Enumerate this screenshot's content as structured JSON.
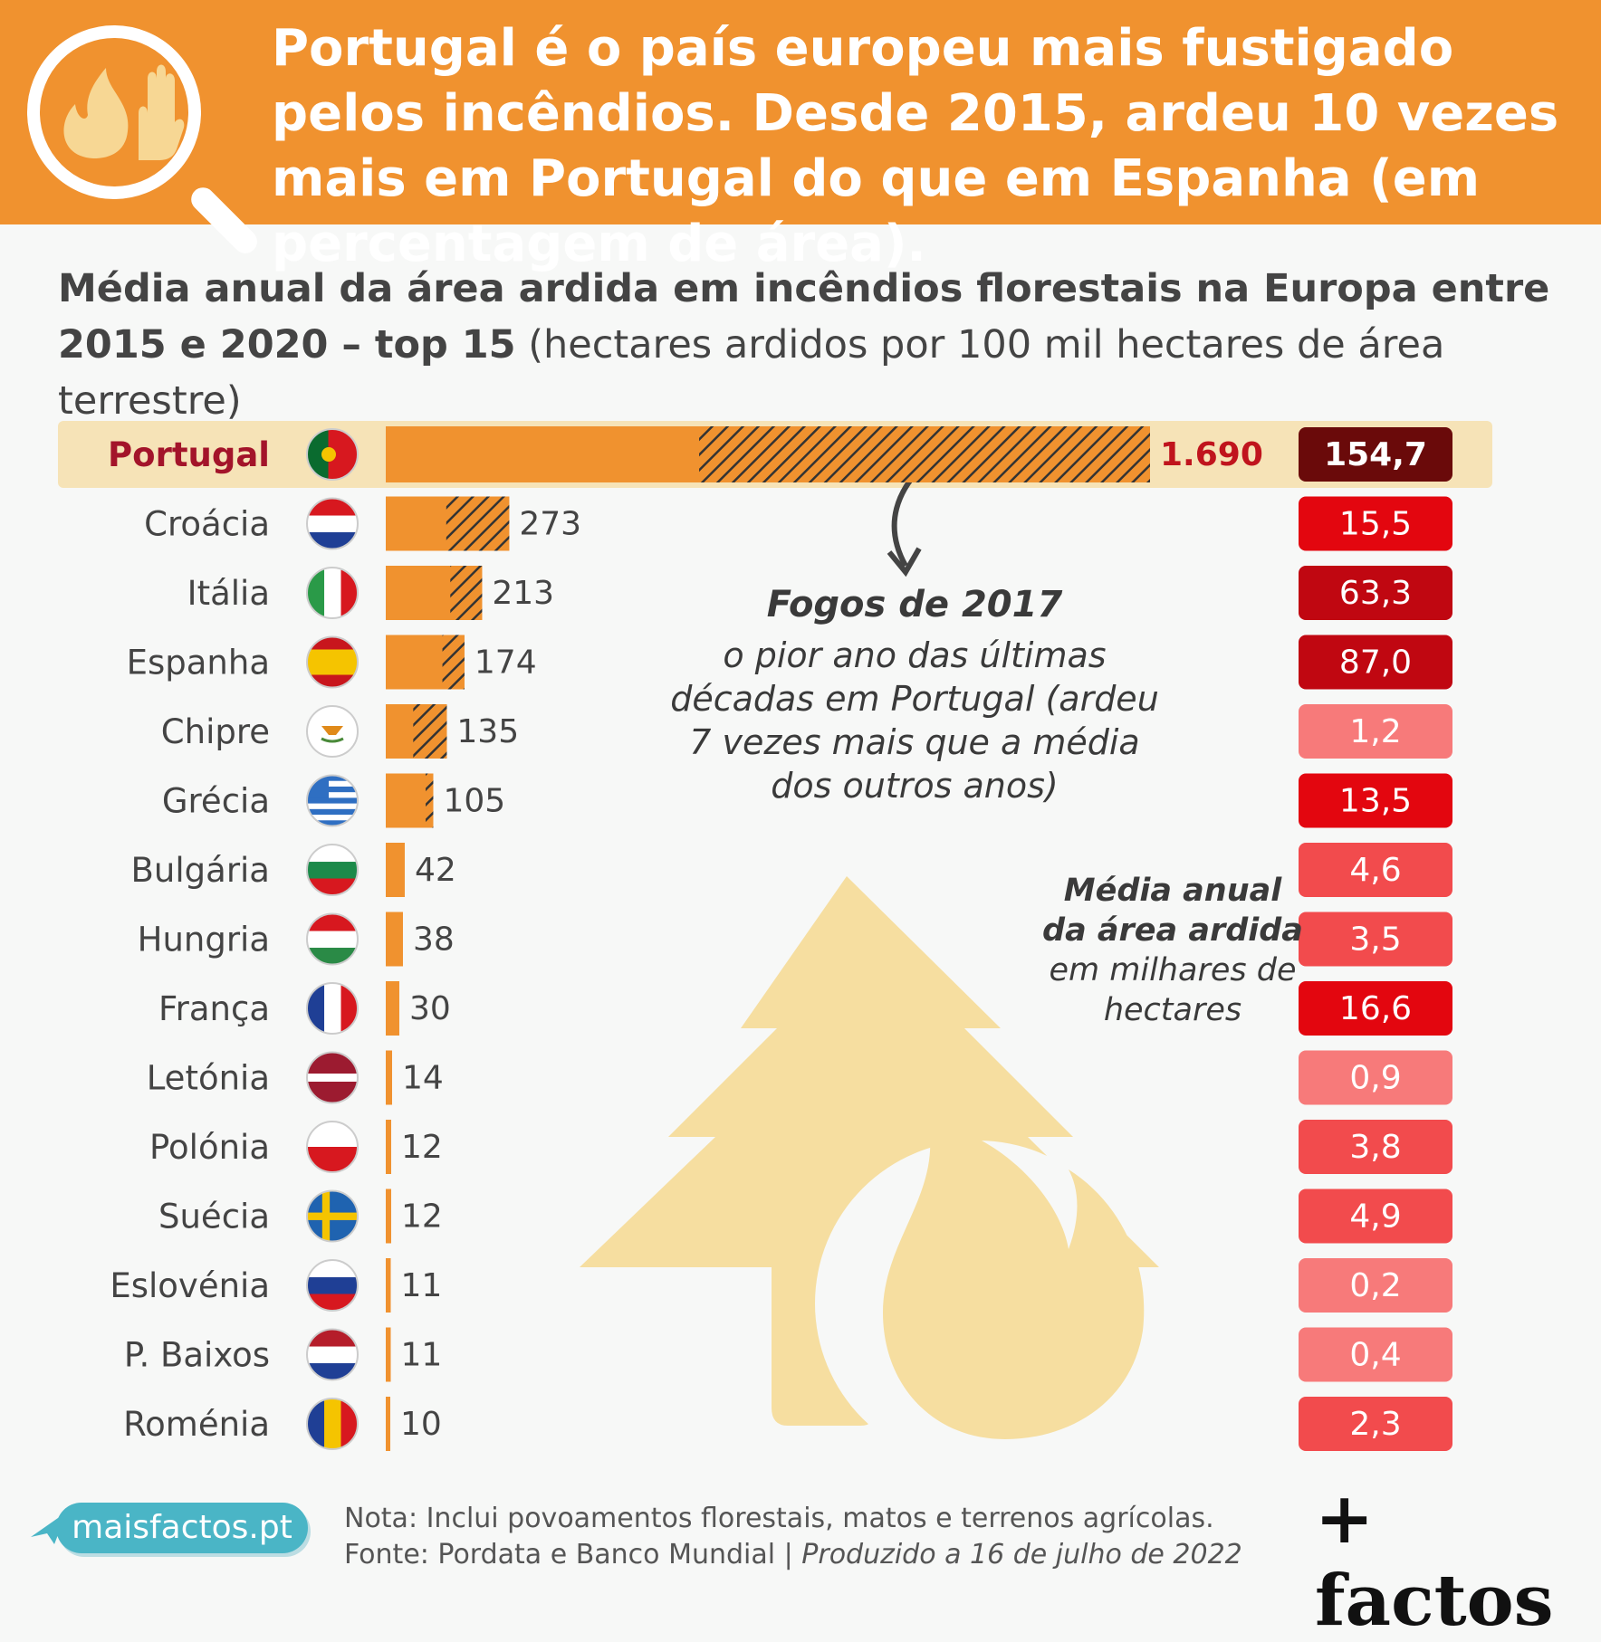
{
  "header": {
    "headline": "Portugal é o país europeu mais fustigado pelos incêndios. Desde 2015, ardeu 10 vezes mais em Portugal do que em Espanha (em percentagem de área)."
  },
  "subtitle": {
    "bold": "Média anual da área ardida em incêndios florestais na Europa entre 2015 e 2020 – top 15",
    "normal": " (hectares ardidos por 100 mil hectares de área terrestre)"
  },
  "annotation": {
    "title": "Fogos de 2017",
    "body": "o pior ano das últimas décadas em Portugal (ardeu 7 vezes mais que a média dos outros anos)"
  },
  "legend_note": {
    "bold": "Média anual da área ardida",
    "normal": "em milhares de hectares"
  },
  "colors": {
    "header": "#f0922f",
    "bar": "#f0922f",
    "highlight_row": "#f6e3b7",
    "portugal_label": "#a3142a"
  },
  "chart_data": {
    "type": "bar",
    "orientation": "horizontal",
    "categories": [
      "Portugal",
      "Croácia",
      "Itália",
      "Espanha",
      "Chipre",
      "Grécia",
      "Bulgária",
      "Hungria",
      "França",
      "Letónia",
      "Polónia",
      "Suécia",
      "Eslovénia",
      "P. Baixos",
      "Roménia"
    ],
    "series": [
      {
        "values": [
          1690,
          273,
          213,
          174,
          135,
          105,
          42,
          38,
          30,
          14,
          12,
          12,
          11,
          11,
          10
        ]
      }
    ],
    "value_labels": [
      "1.690",
      "273",
      "213",
      "174",
      "135",
      "105",
      "42",
      "38",
      "30",
      "14",
      "12",
      "12",
      "11",
      "11",
      "10"
    ],
    "hatched_2017_share": [
      0.59,
      0.51,
      0.33,
      0.28,
      0.55,
      0.16,
      0,
      0,
      0,
      0,
      0,
      0,
      0,
      0,
      0
    ],
    "side_column": {
      "values": [
        154.7,
        15.5,
        63.3,
        87.0,
        1.2,
        13.5,
        4.6,
        3.5,
        16.6,
        0.9,
        3.8,
        4.9,
        0.2,
        0.4,
        2.3
      ],
      "labels": [
        "154,7",
        "15,5",
        "63,3",
        "87,0",
        "1,2",
        "13,5",
        "4,6",
        "3,5",
        "16,6",
        "0,9",
        "3,8",
        "4,9",
        "0,2",
        "0,4",
        "2,3"
      ]
    },
    "flags": [
      "portugal-flag",
      "croatia-flag",
      "italy-flag",
      "spain-flag",
      "cyprus-flag",
      "greece-flag",
      "bulgaria-flag",
      "hungary-flag",
      "france-flag",
      "latvia-flag",
      "poland-flag",
      "sweden-flag",
      "slovenia-flag",
      "netherlands-flag",
      "romania-flag"
    ],
    "highlight": "Portugal"
  },
  "footer": {
    "site": "maisfactos.pt",
    "note": "Nota: Inclui povoamentos florestais, matos e terrenos agrícolas.",
    "source": "Fonte: Pordata e Banco Mundial | ",
    "produced": "Produzido a 16 de julho de 2022",
    "brand": "+ factos"
  },
  "icons": [
    "flame-icon",
    "hand-icon",
    "magnifier-icon",
    "tree-fire-icon",
    "paper-plane-icon",
    "curved-arrow-icon"
  ]
}
